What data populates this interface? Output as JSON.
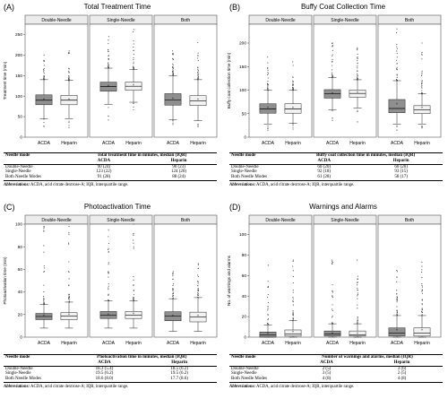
{
  "panels": [
    {
      "letter": "(A)",
      "title": "Total Treatment Time",
      "table": {
        "col_mode": "Needle mode",
        "col_metric": "Total treatment time in minutes, median (IQR)",
        "col_acda": "ACDA",
        "col_heparin": "Heparin",
        "rows": [
          {
            "mode": "Double-Needle",
            "acda": "90 (24)",
            "heparin": "90 (23)"
          },
          {
            "mode": "Single-Needle",
            "acda": "123 (22)",
            "heparin": "124 (20)"
          },
          {
            "mode": "Both Needle Modes",
            "acda": "91 (28)",
            "heparin": "88 (24)"
          }
        ]
      },
      "abbrev_label": "Abbreviations:",
      "abbrev_text": " ACDA, acid citrate dextrose-A; IQR, interquartile range."
    },
    {
      "letter": "(B)",
      "title": "Buffy Coat Collection Time",
      "table": {
        "col_mode": "Needle mode",
        "col_metric": "Buffy coat collection time in minutes, median (IQR)",
        "col_acda": "ACDA",
        "col_heparin": "Heparin",
        "rows": [
          {
            "mode": "Double-Needle",
            "acda": "60 (20)",
            "heparin": "60 (20)"
          },
          {
            "mode": "Single-Needle",
            "acda": "92 (18)",
            "heparin": "93 (15)"
          },
          {
            "mode": "Both Needle Modes",
            "acda": "61 (28)",
            "heparin": "58 (17)"
          }
        ]
      },
      "abbrev_label": "Abbreviations:",
      "abbrev_text": " ACDA, acid citrate dextrose-A; IQR, interquartile range."
    },
    {
      "letter": "(C)",
      "title": "Photoactivation Time",
      "table": {
        "col_mode": "Needle mode",
        "col_metric": "Photoactivation time in minutes, median (IQR)",
        "col_acda": "ACDA",
        "col_heparin": "Heparin",
        "rows": [
          {
            "mode": "Double-Needle",
            "acda": "18.3 (5.4)",
            "heparin": "18.5 (6.2)"
          },
          {
            "mode": "Single-Needle",
            "acda": "19.5 (6.2)",
            "heparin": "19.5 (6.2)"
          },
          {
            "mode": "Both Needle Modes",
            "acda": "18.6 (8.0)",
            "heparin": "17.7 (8.6)"
          }
        ]
      },
      "abbrev_label": "Abbreviations:",
      "abbrev_text": " ACDA, acid citrate dextrose-A; IQR, interquartile range."
    },
    {
      "letter": "(D)",
      "title": "Warnings and Alarms",
      "table": {
        "col_mode": "Needle mode",
        "col_metric": "Number of warnings and alarms, median (IQR)",
        "col_acda": "ACDA",
        "col_heparin": "Heparin",
        "rows": [
          {
            "mode": "Double-Needle",
            "acda": "2 (5)",
            "heparin": "3 (6)"
          },
          {
            "mode": "Single-Needle",
            "acda": "3 (5)",
            "heparin": "2 (5)"
          },
          {
            "mode": "Both Needle Modes",
            "acda": "4 (8)",
            "heparin": "4 (8)"
          }
        ]
      },
      "abbrev_label": "Abbreviations:",
      "abbrev_text": " ACDA, acid citrate dextrose-A; IQR, interquartile range."
    }
  ],
  "colors": {
    "acda_box": "#8f8f8f",
    "heparin_box": "#f2f2f2",
    "strip": "#ececec",
    "frame": "#555555",
    "outlier": "#333333"
  },
  "chart_data": [
    {
      "type": "box",
      "title": "Total Treatment Time",
      "ylabel": "Treatment time (min)",
      "ylim": [
        0,
        275
      ],
      "yticks": [
        0,
        50,
        100,
        150,
        200,
        250
      ],
      "facets": [
        "Double-Needle",
        "Single-Needle",
        "Both"
      ],
      "categories": [
        "ACDA",
        "Heparin"
      ],
      "series": [
        {
          "facet": "Double-Needle",
          "name": "ACDA",
          "q1": 79,
          "median": 90,
          "q3": 103,
          "whisker_low": 45,
          "whisker_high": 140,
          "mean": 93,
          "outlier_max": 200
        },
        {
          "facet": "Double-Needle",
          "name": "Heparin",
          "q1": 79,
          "median": 90,
          "q3": 102,
          "whisker_low": 45,
          "whisker_high": 138,
          "mean": 93,
          "outlier_max": 210
        },
        {
          "facet": "Single-Needle",
          "name": "ACDA",
          "q1": 112,
          "median": 123,
          "q3": 134,
          "whisker_low": 80,
          "whisker_high": 168,
          "mean": 125,
          "outlier_max": 245
        },
        {
          "facet": "Single-Needle",
          "name": "Heparin",
          "q1": 114,
          "median": 124,
          "q3": 134,
          "whisker_low": 85,
          "whisker_high": 165,
          "mean": 127,
          "outlier_max": 262
        },
        {
          "facet": "Both",
          "name": "ACDA",
          "q1": 78,
          "median": 91,
          "q3": 106,
          "whisker_low": 42,
          "whisker_high": 150,
          "mean": 95,
          "outlier_max": 210
        },
        {
          "facet": "Both",
          "name": "Heparin",
          "q1": 77,
          "median": 88,
          "q3": 101,
          "whisker_low": 40,
          "whisker_high": 140,
          "mean": 93,
          "outlier_max": 230
        }
      ]
    },
    {
      "type": "box",
      "title": "Buffy Coat Collection Time",
      "ylabel": "Buffy coat collection time (min)",
      "ylim": [
        0,
        240
      ],
      "yticks": [
        0,
        50,
        100,
        150,
        200
      ],
      "facets": [
        "Double-Needle",
        "Single-Needle",
        "Both"
      ],
      "categories": [
        "ACDA",
        "Heparin"
      ],
      "series": [
        {
          "facet": "Double-Needle",
          "name": "ACDA",
          "q1": 51,
          "median": 60,
          "q3": 71,
          "whisker_low": 28,
          "whisker_high": 100,
          "mean": 63,
          "outlier_max": 170
        },
        {
          "facet": "Double-Needle",
          "name": "Heparin",
          "q1": 51,
          "median": 60,
          "q3": 71,
          "whisker_low": 30,
          "whisker_high": 100,
          "mean": 63,
          "outlier_max": 160
        },
        {
          "facet": "Single-Needle",
          "name": "ACDA",
          "q1": 83,
          "median": 92,
          "q3": 101,
          "whisker_low": 58,
          "whisker_high": 127,
          "mean": 93,
          "outlier_max": 200
        },
        {
          "facet": "Single-Needle",
          "name": "Heparin",
          "q1": 85,
          "median": 93,
          "q3": 100,
          "whisker_low": 62,
          "whisker_high": 122,
          "mean": 95,
          "outlier_max": 190
        },
        {
          "facet": "Both",
          "name": "ACDA",
          "q1": 52,
          "median": 61,
          "q3": 80,
          "whisker_low": 28,
          "whisker_high": 120,
          "mean": 70,
          "outlier_max": 230
        },
        {
          "facet": "Both",
          "name": "Heparin",
          "q1": 50,
          "median": 58,
          "q3": 67,
          "whisker_low": 28,
          "whisker_high": 92,
          "mean": 63,
          "outlier_max": 200
        }
      ]
    },
    {
      "type": "box",
      "title": "Photoactivation Time",
      "ylabel": "Photoactivation time (min)",
      "ylim": [
        0,
        100
      ],
      "yticks": [
        0,
        20,
        40,
        60,
        80,
        100
      ],
      "facets": [
        "Double-Needle",
        "Single-Needle",
        "Both"
      ],
      "categories": [
        "ACDA",
        "Heparin"
      ],
      "series": [
        {
          "facet": "Double-Needle",
          "name": "ACDA",
          "q1": 15.5,
          "median": 18.3,
          "q3": 21,
          "whisker_low": 8,
          "whisker_high": 29,
          "mean": 19,
          "outlier_max": 98
        },
        {
          "facet": "Double-Needle",
          "name": "Heparin",
          "q1": 15.5,
          "median": 18.5,
          "q3": 21.7,
          "whisker_low": 8,
          "whisker_high": 31,
          "mean": 20,
          "outlier_max": 98
        },
        {
          "facet": "Single-Needle",
          "name": "ACDA",
          "q1": 16.5,
          "median": 19.5,
          "q3": 22.7,
          "whisker_low": 8,
          "whisker_high": 32,
          "mean": 20,
          "outlier_max": 95
        },
        {
          "facet": "Single-Needle",
          "name": "Heparin",
          "q1": 16.5,
          "median": 19.5,
          "q3": 22.7,
          "whisker_low": 8,
          "whisker_high": 32,
          "mean": 21,
          "outlier_max": 100
        },
        {
          "facet": "Both",
          "name": "ACDA",
          "q1": 14.5,
          "median": 18.6,
          "q3": 22.5,
          "whisker_low": 5,
          "whisker_high": 34,
          "mean": 19,
          "outlier_max": 58
        },
        {
          "facet": "Both",
          "name": "Heparin",
          "q1": 13.5,
          "median": 17.7,
          "q3": 22.1,
          "whisker_low": 5,
          "whisker_high": 35,
          "mean": 19,
          "outlier_max": 65
        }
      ]
    },
    {
      "type": "box",
      "title": "Warnings and Alarms",
      "ylabel": "No. of warnings and alarms",
      "ylim": [
        0,
        110
      ],
      "yticks": [
        0,
        20,
        40,
        60,
        80,
        100
      ],
      "facets": [
        "Double-Needle",
        "Single-Needle",
        "Both"
      ],
      "categories": [
        "ACDA",
        "Heparin"
      ],
      "series": [
        {
          "facet": "Double-Needle",
          "name": "ACDA",
          "q1": 0,
          "median": 2,
          "q3": 5,
          "whisker_low": 0,
          "whisker_high": 12,
          "mean": 4,
          "outlier_max": 70
        },
        {
          "facet": "Double-Needle",
          "name": "Heparin",
          "q1": 1,
          "median": 3,
          "q3": 7,
          "whisker_low": 0,
          "whisker_high": 16,
          "mean": 5,
          "outlier_max": 75
        },
        {
          "facet": "Single-Needle",
          "name": "ACDA",
          "q1": 1,
          "median": 3,
          "q3": 6,
          "whisker_low": 0,
          "whisker_high": 13,
          "mean": 4,
          "outlier_max": 75
        },
        {
          "facet": "Single-Needle",
          "name": "Heparin",
          "q1": 1,
          "median": 2,
          "q3": 6,
          "whisker_low": 0,
          "whisker_high": 13,
          "mean": 4,
          "outlier_max": 75
        },
        {
          "facet": "Both",
          "name": "ACDA",
          "q1": 1,
          "median": 4,
          "q3": 9,
          "whisker_low": 0,
          "whisker_high": 21,
          "mean": 7,
          "outlier_max": 65
        },
        {
          "facet": "Both",
          "name": "Heparin",
          "q1": 1,
          "median": 4,
          "q3": 9,
          "whisker_low": 0,
          "whisker_high": 21,
          "mean": 7,
          "outlier_max": 73
        }
      ]
    }
  ]
}
